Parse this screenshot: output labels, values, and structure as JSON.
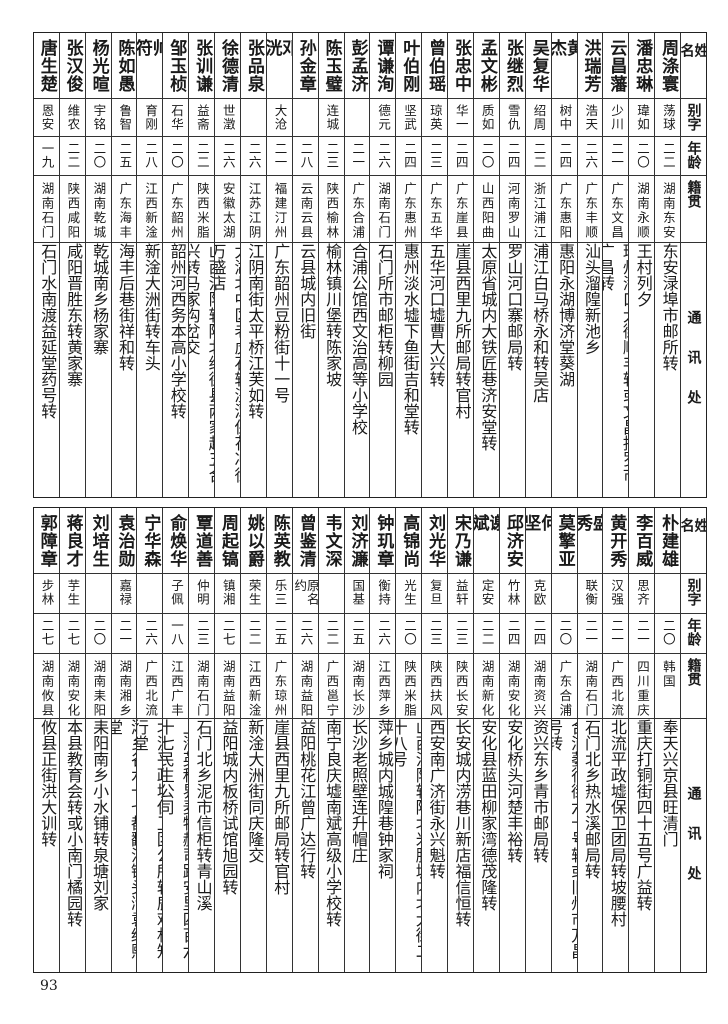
{
  "headers": {
    "name": "姓名",
    "alias": "别字",
    "age": "年龄",
    "origin": "籍贯",
    "address": "通讯处"
  },
  "top_table": [
    {
      "name": "周涤寰",
      "alias": "荡球",
      "age": "二二",
      "origin": "湖南东安",
      "address": "东安渌埠市邮所转"
    },
    {
      "name": "潘忠琳",
      "alias": "瑋如",
      "age": "二〇",
      "origin": "湖南永顺",
      "address": "王村列夕"
    },
    {
      "name": "云昌藩",
      "alias": "少川",
      "age": "二一",
      "origin": "广东文昌",
      "address": "琼州海口大街顺丰转或文昌抱罗市广昌转"
    },
    {
      "name": "洪瑞芳",
      "alias": "浩天",
      "age": "二六",
      "origin": "广东丰顺",
      "address": "汕头溜隍新池乡"
    },
    {
      "name": "黄杰",
      "alias": "树中",
      "age": "二四",
      "origin": "广东惠阳",
      "address": "惠阳永湖博济堂葵湖"
    },
    {
      "name": "吴复华",
      "alias": "绍周",
      "age": "二二",
      "origin": "浙江浦江",
      "address": "浦江白马桥永和转吴店"
    },
    {
      "name": "张继烈",
      "alias": "雪仇",
      "age": "二四",
      "origin": "河南罗山",
      "address": "罗山河口寨邮局转"
    },
    {
      "name": "孟文彬",
      "alias": "质如",
      "age": "二〇",
      "origin": "山西阳曲",
      "address": "太原省城内大铁匠巷济安堂转"
    },
    {
      "name": "张忠中",
      "alias": "华一",
      "age": "二四",
      "origin": "广东崖县",
      "address": "崖县西里九所邮局转官村"
    },
    {
      "name": "曾伯瑶",
      "alias": "琼英",
      "age": "二三",
      "origin": "广东五华",
      "address": "五华河口墟曹大兴转"
    },
    {
      "name": "叶伯刚",
      "alias": "坚武",
      "age": "二四",
      "origin": "广东惠州",
      "address": "惠州淡水墟下鱼街吉和堂转"
    },
    {
      "name": "谭谦洵",
      "alias": "德元",
      "age": "二六",
      "origin": "湖南石门",
      "address": "石门所市邮柜转柳园"
    },
    {
      "name": "彭孟济",
      "alias": "",
      "age": "二一",
      "origin": "广东合浦",
      "address": "合浦公馆西文治高等小学校"
    },
    {
      "name": "陈玉璧",
      "alias": "连城",
      "age": "二三",
      "origin": "陕西榆林",
      "address": "榆林镇川堡转陈家坡"
    },
    {
      "name": "孙金章",
      "alias": "",
      "age": "二八",
      "origin": "云南云县",
      "address": "云县城内旧街"
    },
    {
      "name": "邓洸",
      "alias": "大沧",
      "age": "二一",
      "origin": "福建汀州",
      "address": "广东韶州豆粉街十一号"
    },
    {
      "name": "张品泉",
      "alias": "",
      "age": "二六",
      "origin": "江苏江阴",
      "address": "江阴南街太平桥江芙如转"
    },
    {
      "name": "徐德清",
      "alias": "世澂",
      "age": "二六",
      "origin": "安徽太湖",
      "address": "太湖北中区老虎石转济潭保花冲徐万盛店"
    },
    {
      "name": "张训谦",
      "alias": "益斋",
      "age": "二二",
      "origin": "陕西米脂",
      "address": "山西汾阳转陕北绥德县两家赵五合兴转马家沟岔交",
      "small": true
    },
    {
      "name": "邹玉桢",
      "alias": "石华",
      "age": "二〇",
      "origin": "广东韶州",
      "address": "韶州河西务本高小学校转"
    },
    {
      "name": "帅符",
      "alias": "育刚",
      "age": "二八",
      "origin": "江西新淦",
      "address": "新淦大洲街转车头"
    },
    {
      "name": "陈如愚",
      "alias": "鲁智",
      "age": "二五",
      "origin": "广东海丰",
      "address": "海丰后巷街祥和转"
    },
    {
      "name": "杨光暄",
      "alias": "宇铭",
      "age": "二〇",
      "origin": "湖南乾城",
      "address": "乾城南乡杨家寨"
    },
    {
      "name": "张汉俊",
      "alias": "维农",
      "age": "二二",
      "origin": "陕西咸阳",
      "address": "咸阳晋胜东转黄家寨"
    },
    {
      "name": "唐生楚",
      "alias": "恩安",
      "age": "一九",
      "origin": "湖南石门",
      "address": "石门水南渡益延堂药号转"
    }
  ],
  "bottom_table": [
    {
      "name": "朴建雄",
      "alias": "",
      "age": "二〇",
      "origin": "韩国",
      "address": "奉天兴京县旺清门"
    },
    {
      "name": "李百威",
      "alias": "思齐",
      "age": "二一",
      "origin": "四川重庆",
      "address": "重庆打铜街四十五号广益转"
    },
    {
      "name": "黄开秀",
      "alias": "汉强",
      "age": "二一",
      "origin": "广西北流",
      "address": "北流平政墟保卫团局转坡腰村"
    },
    {
      "name": "盛秀",
      "alias": "联衡",
      "age": "二一",
      "origin": "湖南石门",
      "address": "石门北乡热水溪邮局转"
    },
    {
      "name": "莫擎亚",
      "alias": "",
      "age": "二〇",
      "origin": "广东合浦",
      "address": "合浦萎行街六十号转或旧州市万昌号转"
    },
    {
      "name": "何坚",
      "alias": "克欧",
      "age": "二四",
      "origin": "湖南资兴",
      "address": "资兴东乡青市邮局转"
    },
    {
      "name": "邱济安",
      "alias": "竹林",
      "age": "二四",
      "origin": "湖南安化",
      "address": "安化桥头河楚丰裕转"
    },
    {
      "name": "谢斌",
      "alias": "定安",
      "age": "二二",
      "origin": "湖南新化",
      "address": "安化县蓝田柳家湾德茂隆转"
    },
    {
      "name": "宋乃谦",
      "alias": "益轩",
      "age": "二三",
      "origin": "陕西长安",
      "address": "长安城内涝巷川新店福信恒转"
    },
    {
      "name": "刘光华",
      "alias": "复旦",
      "age": "二三",
      "origin": "陕西扶风",
      "address": "西安南广济街永兴魁转"
    },
    {
      "name": "高锦尚",
      "alias": "光生",
      "age": "二〇",
      "origin": "陕西米脂",
      "address": "山西汾阳转陕北米脂城内北大街二十八号"
    },
    {
      "name": "钟玑章",
      "alias": "衡持",
      "age": "二六",
      "origin": "江西萍乡",
      "address": "萍乡城内城隍巷钟家祠"
    },
    {
      "name": "刘济濂",
      "alias": "国基",
      "age": "二五",
      "origin": "湖南长沙",
      "address": "长沙老照壁连升帽庄"
    },
    {
      "name": "韦文深",
      "alias": "",
      "age": "二二",
      "origin": "广西邕宁",
      "address": "南宁良庆墟南斌高级小学校转"
    },
    {
      "name": "曾鉴清",
      "alias": "原名约",
      "age": "二六",
      "origin": "湖南益阳",
      "address": "益阳桃花江曾广达行转"
    },
    {
      "name": "陈英教",
      "alias": "乐三",
      "age": "二五",
      "origin": "广东琼州",
      "address": "崖县西里九所邮局转官村"
    },
    {
      "name": "姚以爵",
      "alias": "荣生",
      "age": "二二",
      "origin": "江西新淦",
      "address": "新淦大洲街同庆隆交"
    },
    {
      "name": "周起镐",
      "alias": "镇湘",
      "age": "二七",
      "origin": "湖南益阳",
      "address": "益阳城内板桥试馆旭园转"
    },
    {
      "name": "覃道善",
      "alias": "仲明",
      "age": "二三",
      "origin": "湖南石门",
      "address": "石门北乡泥市信柜转青山溪"
    },
    {
      "name": "俞焕华",
      "alias": "子佩",
      "age": "一八",
      "origin": "江西广丰",
      "address": "上海英租界麦特赫司路安里四百六十七民生公司",
      "small": true
    },
    {
      "name": "宁华森",
      "alias": "",
      "age": "二六",
      "origin": "广西北流",
      "address": "北流平政墟保卫团公所转鹿鸡村知行堂"
    },
    {
      "name": "袁治勋",
      "alias": "嘉禄",
      "age": "二一",
      "origin": "湖南湘乡",
      "address": "湘乡谷水十七都翻江锄头湾袁缉熙堂"
    },
    {
      "name": "刘培生",
      "alias": "",
      "age": "二〇",
      "origin": "湖南耒阳",
      "address": "耒阳南乡小水铺转泉塘刘家"
    },
    {
      "name": "蒋良才",
      "alias": "芋生",
      "age": "二七",
      "origin": "湖南安化",
      "address": "本县教育会转或小南门橘园转"
    },
    {
      "name": "郭障章",
      "alias": "步林",
      "age": "二七",
      "origin": "湖南攸县",
      "address": "攸县正街洪大训转"
    }
  ],
  "page_number": "93"
}
